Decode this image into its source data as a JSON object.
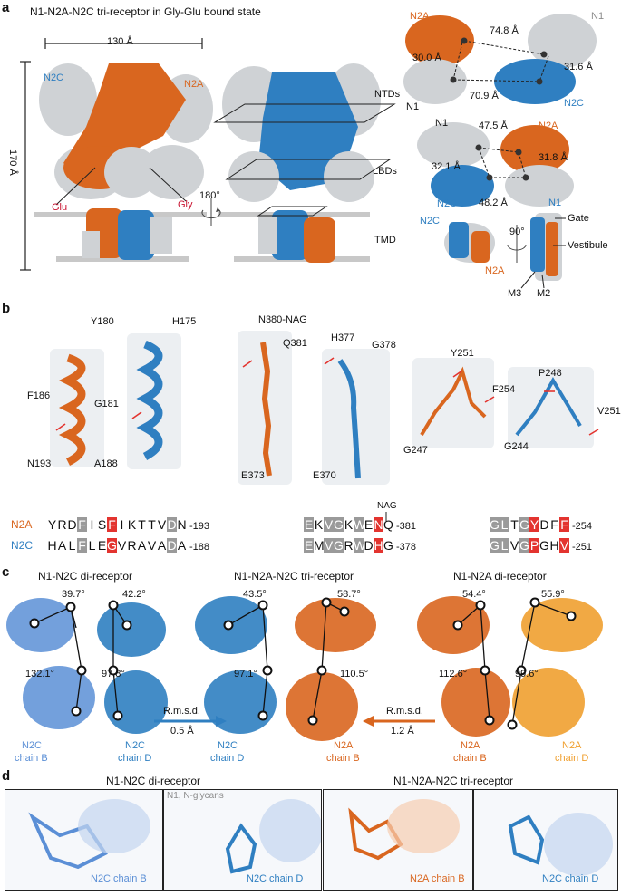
{
  "panel_a": {
    "letter": "a",
    "title": "N1-N2A-N2C tri-receptor in Gly-Glu bound state",
    "width_label": "130 Å",
    "height_label": "170 Å",
    "labels": {
      "n2c": "N2C",
      "n2a": "N2A",
      "glu": "Glu",
      "gly": "Gly",
      "rot": "180°",
      "ntds": "NTDs",
      "lbds": "LBDs",
      "tmd": "TMD"
    },
    "right": {
      "top": {
        "n2a": "N2A",
        "n1_tr": "N1",
        "n1_bl": "N1",
        "n2c": "N2C",
        "d1": "74.8 Å",
        "d2": "30.0 Å",
        "d3": "31.6 Å",
        "d4": "70.9 Å"
      },
      "mid": {
        "n1": "N1",
        "n2a": "N2A",
        "n2c": "N2C",
        "d1": "47.5 Å",
        "d2": "32.1 Å",
        "d3": "31.8 Å",
        "d4": "48.2 Å"
      },
      "bot": {
        "n2c": "N2C",
        "n1": "N1",
        "n2a": "N2A",
        "rot": "90°",
        "gate": "Gate",
        "vest": "Vestibule",
        "m3": "M3",
        "m2": "M2"
      }
    }
  },
  "panel_b": {
    "letter": "b",
    "residues": {
      "y180": "Y180",
      "f186": "F186",
      "n193": "N193",
      "h175": "H175",
      "g181": "G181",
      "a188": "A188",
      "n380": "N380-NAG",
      "q381": "Q381",
      "e373": "E373",
      "h377": "H377",
      "g378": "G378",
      "e370": "E370",
      "y251": "Y251",
      "f254": "F254",
      "g247": "G247",
      "p248": "P248",
      "v251": "V251",
      "g244": "G244"
    },
    "nag": "NAG",
    "seq_labels": {
      "n2a": "N2A",
      "n2c": "N2C"
    },
    "sequences": [
      {
        "row": "N2A",
        "residues": [
          [
            "Y",
            ""
          ],
          [
            "R",
            ""
          ],
          [
            "D",
            ""
          ],
          [
            "F",
            "g"
          ],
          [
            "I",
            ""
          ],
          [
            "S",
            ""
          ],
          [
            "F",
            "r"
          ],
          [
            "I",
            ""
          ],
          [
            "K",
            ""
          ],
          [
            "T",
            ""
          ],
          [
            "T",
            ""
          ],
          [
            "V",
            ""
          ],
          [
            "D",
            "g"
          ],
          [
            "N",
            ""
          ]
        ],
        "end": "-193"
      },
      {
        "row": "N2C",
        "residues": [
          [
            "H",
            ""
          ],
          [
            "A",
            ""
          ],
          [
            "L",
            ""
          ],
          [
            "F",
            "g"
          ],
          [
            "L",
            ""
          ],
          [
            "E",
            ""
          ],
          [
            "G",
            "r"
          ],
          [
            "V",
            ""
          ],
          [
            "R",
            ""
          ],
          [
            "A",
            ""
          ],
          [
            "V",
            ""
          ],
          [
            "A",
            ""
          ],
          [
            "D",
            "g"
          ],
          [
            "A",
            ""
          ]
        ],
        "end": "-188"
      },
      {
        "row": "N2A",
        "residues": [
          [
            "E",
            "g"
          ],
          [
            "K",
            ""
          ],
          [
            "V",
            "g"
          ],
          [
            "G",
            "g"
          ],
          [
            "K",
            ""
          ],
          [
            "W",
            "g"
          ],
          [
            "E",
            ""
          ],
          [
            "N",
            "r"
          ],
          [
            "Q",
            ""
          ]
        ],
        "end": "-381"
      },
      {
        "row": "N2C",
        "residues": [
          [
            "E",
            "g"
          ],
          [
            "M",
            ""
          ],
          [
            "V",
            "g"
          ],
          [
            "G",
            "g"
          ],
          [
            "R",
            ""
          ],
          [
            "W",
            "g"
          ],
          [
            "D",
            ""
          ],
          [
            "H",
            "r"
          ],
          [
            "G",
            ""
          ]
        ],
        "end": "-378"
      },
      {
        "row": "N2A",
        "residues": [
          [
            "G",
            "g"
          ],
          [
            "L",
            "g"
          ],
          [
            "T",
            ""
          ],
          [
            "G",
            "g"
          ],
          [
            "Y",
            "r"
          ],
          [
            "D",
            ""
          ],
          [
            "F",
            ""
          ],
          [
            "F",
            "r"
          ]
        ],
        "end": "-254"
      },
      {
        "row": "N2C",
        "residues": [
          [
            "G",
            "g"
          ],
          [
            "L",
            "g"
          ],
          [
            "V",
            ""
          ],
          [
            "G",
            "g"
          ],
          [
            "P",
            "r"
          ],
          [
            "G",
            ""
          ],
          [
            "H",
            ""
          ],
          [
            "V",
            "r"
          ]
        ],
        "end": "-251"
      }
    ]
  },
  "panel_c": {
    "letter": "c",
    "left_title": "N1-N2C di-receptor",
    "mid_title": "N1-N2A-N2C tri-receptor",
    "right_title": "N1-N2A di-receptor",
    "angles_left": [
      "39.7°",
      "42.2°",
      "132.1°",
      "97.8°"
    ],
    "angles_mid": [
      "43.5°",
      "58.7°",
      "97.1°",
      "110.5°"
    ],
    "angles_right": [
      "54.4°",
      "55.9°",
      "112.6°",
      "99.6°"
    ],
    "rmsd_left": {
      "label": "R.m.s.d.",
      "value": "0.5 Å"
    },
    "rmsd_right": {
      "label": "R.m.s.d.",
      "value": "1.2 Å"
    },
    "chain_labels": {
      "l1a": "N2C",
      "l1b": "chain B",
      "l2a": "N2C",
      "l2b": "chain D",
      "m1a": "N2C",
      "m1b": "chain D",
      "m2a": "N2A",
      "m2b": "chain B",
      "r1a": "N2A",
      "r1b": "chain B",
      "r2a": "N2A",
      "r2b": "chain D"
    }
  },
  "panel_d": {
    "letter": "d",
    "left_title": "N1-N2C di-receptor",
    "right_title": "N1-N2A-N2C tri-receptor",
    "glycans": "N1, N-glycans",
    "boxes": [
      "N2C chain B",
      "N2C chain D",
      "N2A chain B",
      "N2C chain D"
    ]
  },
  "colors": {
    "n2a": "#d9661f",
    "n2c": "#2f7fc1",
    "n1": "#c9cccf",
    "n2c_light": "#5b8fd6",
    "n2a_light": "#f0a030",
    "highlight": "#e3342f"
  }
}
